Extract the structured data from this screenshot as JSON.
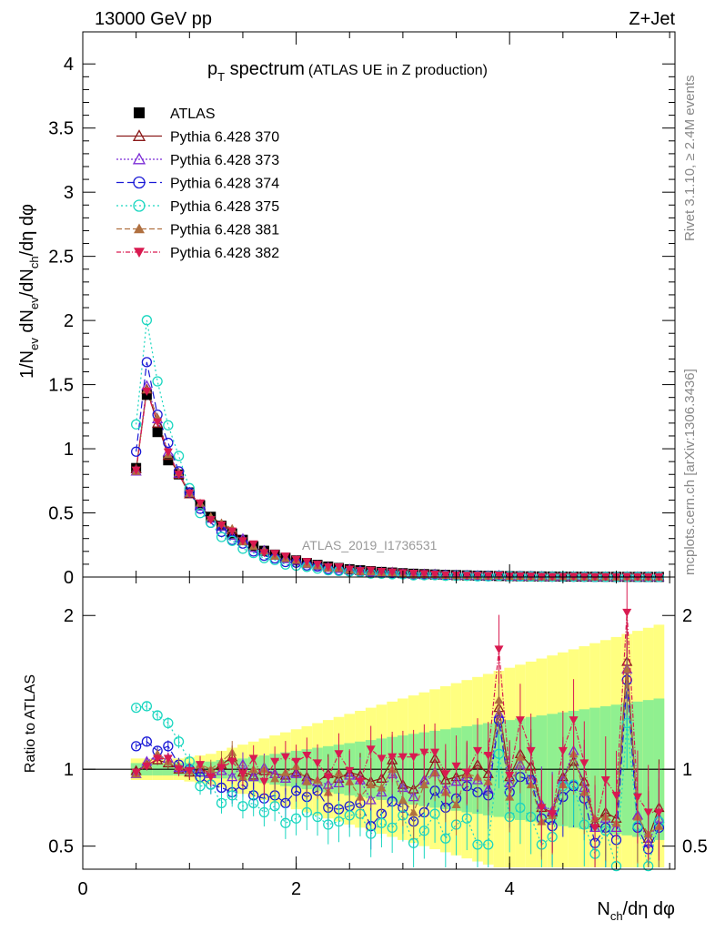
{
  "header": {
    "left": "13000 GeV pp",
    "right": "Z+Jet"
  },
  "side_labels": {
    "rivet": "Rivet 3.1.10, ≥ 2.4M events",
    "mcplots": "mcplots.cern.ch [arXiv:1306.3436]"
  },
  "chart_data": [
    {
      "type": "scatter",
      "panel": "main",
      "title_main": "p",
      "title_sub": "T",
      "title_rest": " spectrum",
      "title_paren": "(ATLAS UE in Z production)",
      "ylabel": "1/N_ev dN_ev/dN_ch/dη dφ",
      "watermark": "ATLAS_2019_I1736531",
      "xlim": [
        0,
        5.55
      ],
      "ylim": [
        0,
        4.25
      ],
      "y_ticks": [
        0,
        0.5,
        1,
        1.5,
        2,
        2.5,
        3,
        3.5,
        4
      ],
      "y_tick_labels": [
        "0",
        "0.5",
        "1",
        "1.5",
        "2",
        "2.5",
        "3",
        "3.5",
        "4"
      ],
      "x": [
        0.5,
        0.6,
        0.7,
        0.8,
        0.9,
        1.0,
        1.1,
        1.2,
        1.3,
        1.4,
        1.5,
        1.6,
        1.7,
        1.8,
        1.9,
        2.0,
        2.1,
        2.2,
        2.3,
        2.4,
        2.5,
        2.6,
        2.7,
        2.8,
        2.9,
        3.0,
        3.1,
        3.2,
        3.3,
        3.4,
        3.5,
        3.6,
        3.7,
        3.8,
        3.9,
        4.0,
        4.1,
        4.2,
        4.3,
        4.4,
        4.5,
        4.6,
        4.7,
        4.8,
        4.9,
        5.0,
        5.1,
        5.2,
        5.3,
        5.4
      ],
      "series": [
        {
          "name": "ATLAS",
          "color": "#000000",
          "marker": "square",
          "values": [
            0.85,
            1.42,
            1.13,
            0.91,
            0.8,
            0.66,
            0.56,
            0.47,
            0.4,
            0.34,
            0.29,
            0.24,
            0.205,
            0.175,
            0.15,
            0.13,
            0.11,
            0.095,
            0.082,
            0.071,
            0.061,
            0.053,
            0.046,
            0.04,
            0.035,
            0.03,
            0.026,
            0.023,
            0.02,
            0.017,
            0.015,
            0.013,
            0.011,
            0.0095,
            0.0082,
            0.0071,
            0.0062,
            0.0054,
            0.0047,
            0.0041,
            0.0036,
            0.0031,
            0.0027,
            0.0024,
            0.0021,
            0.0018,
            0.0016,
            0.0014,
            0.0012,
            0.0011
          ]
        },
        {
          "name": "Pythia 6.428 370",
          "color": "#8b1a1a",
          "marker": "triangle-open",
          "dash": "",
          "ratio": [
            0.99,
            1.03,
            1.06,
            1.04,
            1.0,
            0.98,
            1.0,
            0.98,
            1.03,
            1.08,
            0.98,
            0.96,
            0.99,
            0.97,
            0.96,
            0.98,
            0.95,
            0.92,
            0.97,
            0.94,
            0.98,
            0.96,
            0.92,
            0.94,
            1.06,
            0.9,
            0.87,
            0.93,
            1.07,
            0.93,
            0.95,
            0.97,
            1.03,
            0.97,
            1.4,
            0.95,
            1.1,
            1.02,
            0.75,
            0.72,
            0.95,
            1.05,
            0.92,
            0.65,
            0.72,
            0.68,
            1.7,
            0.7,
            0.55,
            0.75
          ]
        },
        {
          "name": "Pythia 6.428 373",
          "color": "#7b2bd6",
          "marker": "triangle-open",
          "dash": "2,2",
          "ratio": [
            0.97,
            1.05,
            1.09,
            1.07,
            1.01,
            1.0,
            0.98,
            0.97,
            0.99,
            0.95,
            1.03,
            0.95,
            1.01,
            0.97,
            0.94,
            0.97,
            0.93,
            0.92,
            0.9,
            0.91,
            0.96,
            0.93,
            0.8,
            0.85,
            0.97,
            0.88,
            0.82,
            0.93,
            0.98,
            0.87,
            0.92,
            0.95,
            0.93,
            0.87,
            1.36,
            0.91,
            1.03,
            0.93,
            0.77,
            0.73,
            0.93,
            1.12,
            0.88,
            0.62,
            0.68,
            0.62,
            1.65,
            0.7,
            0.52,
            0.68
          ]
        },
        {
          "name": "Pythia 6.428 374",
          "color": "#1a1ad6",
          "marker": "circle-open",
          "dash": "8,4",
          "ratio": [
            1.15,
            1.18,
            1.12,
            1.15,
            1.03,
            1.0,
            0.95,
            0.9,
            0.88,
            0.85,
            0.9,
            0.83,
            0.81,
            0.83,
            0.78,
            0.86,
            0.82,
            0.86,
            0.75,
            0.74,
            0.76,
            0.78,
            0.63,
            0.71,
            0.79,
            0.75,
            0.66,
            0.72,
            0.86,
            0.75,
            0.81,
            0.89,
            0.85,
            0.83,
            1.32,
            0.85,
            0.95,
            0.93,
            0.68,
            0.63,
            0.82,
            0.89,
            0.81,
            0.52,
            0.62,
            0.54,
            1.58,
            0.62,
            0.48,
            0.62
          ]
        },
        {
          "name": "Pythia 6.428 375",
          "color": "#1ad6c0",
          "marker": "circle-open",
          "dash": "2,3",
          "ratio": [
            1.4,
            1.41,
            1.35,
            1.3,
            1.18,
            1.05,
            0.89,
            0.9,
            0.78,
            0.83,
            0.76,
            0.78,
            0.72,
            0.76,
            0.65,
            0.68,
            0.72,
            0.69,
            0.64,
            0.66,
            0.7,
            0.71,
            0.58,
            0.65,
            0.62,
            0.7,
            0.52,
            0.6,
            0.71,
            0.55,
            0.64,
            0.68,
            0.51,
            0.51,
            1.1,
            0.69,
            0.75,
            0.69,
            0.51,
            0.56,
            0.89,
            0.9,
            0.64,
            0.45,
            0.6,
            0.37,
            1.3,
            0.63,
            0.37,
            0.66
          ]
        },
        {
          "name": "Pythia 6.428 381",
          "color": "#b07040",
          "marker": "triangle-filled",
          "dash": "6,3",
          "ratio": [
            0.97,
            1.03,
            1.1,
            1.05,
            1.02,
            0.99,
            1.03,
            1.0,
            1.05,
            1.11,
            0.95,
            1.0,
            1.0,
            0.94,
            0.98,
            1.02,
            0.92,
            0.93,
            0.85,
            0.98,
            0.92,
            0.82,
            0.9,
            0.88,
            1.0,
            0.8,
            0.72,
            0.9,
            0.98,
            0.85,
            0.77,
            0.97,
            0.95,
            0.92,
            1.45,
            0.82,
            1.08,
            0.9,
            0.66,
            0.7,
            0.9,
            1.1,
            0.85,
            0.68,
            0.69,
            0.65,
            1.65,
            0.69,
            0.58,
            0.63
          ]
        },
        {
          "name": "Pythia 6.428 382",
          "color": "#d91a50",
          "marker": "triangle-down-filled",
          "dash": "5,2,1,2",
          "ratio": [
            0.98,
            1.02,
            1.07,
            1.07,
            1.0,
            0.99,
            1.03,
            0.95,
            1.01,
            1.05,
            0.97,
            1.07,
            0.92,
            1.05,
            1.08,
            1.05,
            1.09,
            1.04,
            0.95,
            1.1,
            0.99,
            0.92,
            1.13,
            1.07,
            1.08,
            1.08,
            1.08,
            1.11,
            1.11,
            0.97,
            1.02,
            0.98,
            1.12,
            1.09,
            1.78,
            0.96,
            1.32,
            1.12,
            0.75,
            0.71,
            1.12,
            1.32,
            1.04,
            0.62,
            0.93,
            0.83,
            2.02,
            0.82,
            0.72,
            0.72
          ]
        }
      ]
    },
    {
      "type": "scatter",
      "panel": "ratio",
      "ylabel": "Ratio to ATLAS",
      "xlabel": "N_ch/dη dφ",
      "xlim": [
        0,
        5.55
      ],
      "ylim": [
        0.35,
        2.25
      ],
      "x_ticks": [
        0,
        2,
        4
      ],
      "x_tick_labels": [
        "0",
        "2",
        "4"
      ],
      "y_ticks": [
        0.5,
        1,
        2
      ],
      "y_tick_labels": [
        "0.5",
        "1",
        "2"
      ],
      "band_green_halfwidth": [
        0.04,
        0.04,
        0.04,
        0.04,
        0.04,
        0.04,
        0.05,
        0.05,
        0.06,
        0.06,
        0.07,
        0.08,
        0.09,
        0.1,
        0.11,
        0.12,
        0.13,
        0.14,
        0.15,
        0.16,
        0.17,
        0.18,
        0.19,
        0.2,
        0.21,
        0.22,
        0.23,
        0.24,
        0.25,
        0.26,
        0.27,
        0.28,
        0.29,
        0.3,
        0.31,
        0.32,
        0.33,
        0.34,
        0.35,
        0.36,
        0.37,
        0.38,
        0.39,
        0.4,
        0.41,
        0.42,
        0.43,
        0.44,
        0.45,
        0.46
      ],
      "band_yellow_halfwidth": [
        0.07,
        0.07,
        0.07,
        0.07,
        0.07,
        0.08,
        0.09,
        0.1,
        0.12,
        0.14,
        0.16,
        0.18,
        0.2,
        0.22,
        0.24,
        0.26,
        0.28,
        0.3,
        0.32,
        0.34,
        0.36,
        0.38,
        0.4,
        0.42,
        0.44,
        0.46,
        0.48,
        0.5,
        0.52,
        0.54,
        0.56,
        0.58,
        0.6,
        0.62,
        0.64,
        0.66,
        0.68,
        0.7,
        0.72,
        0.74,
        0.76,
        0.78,
        0.8,
        0.82,
        0.84,
        0.86,
        0.88,
        0.9,
        0.92,
        0.94
      ]
    }
  ]
}
